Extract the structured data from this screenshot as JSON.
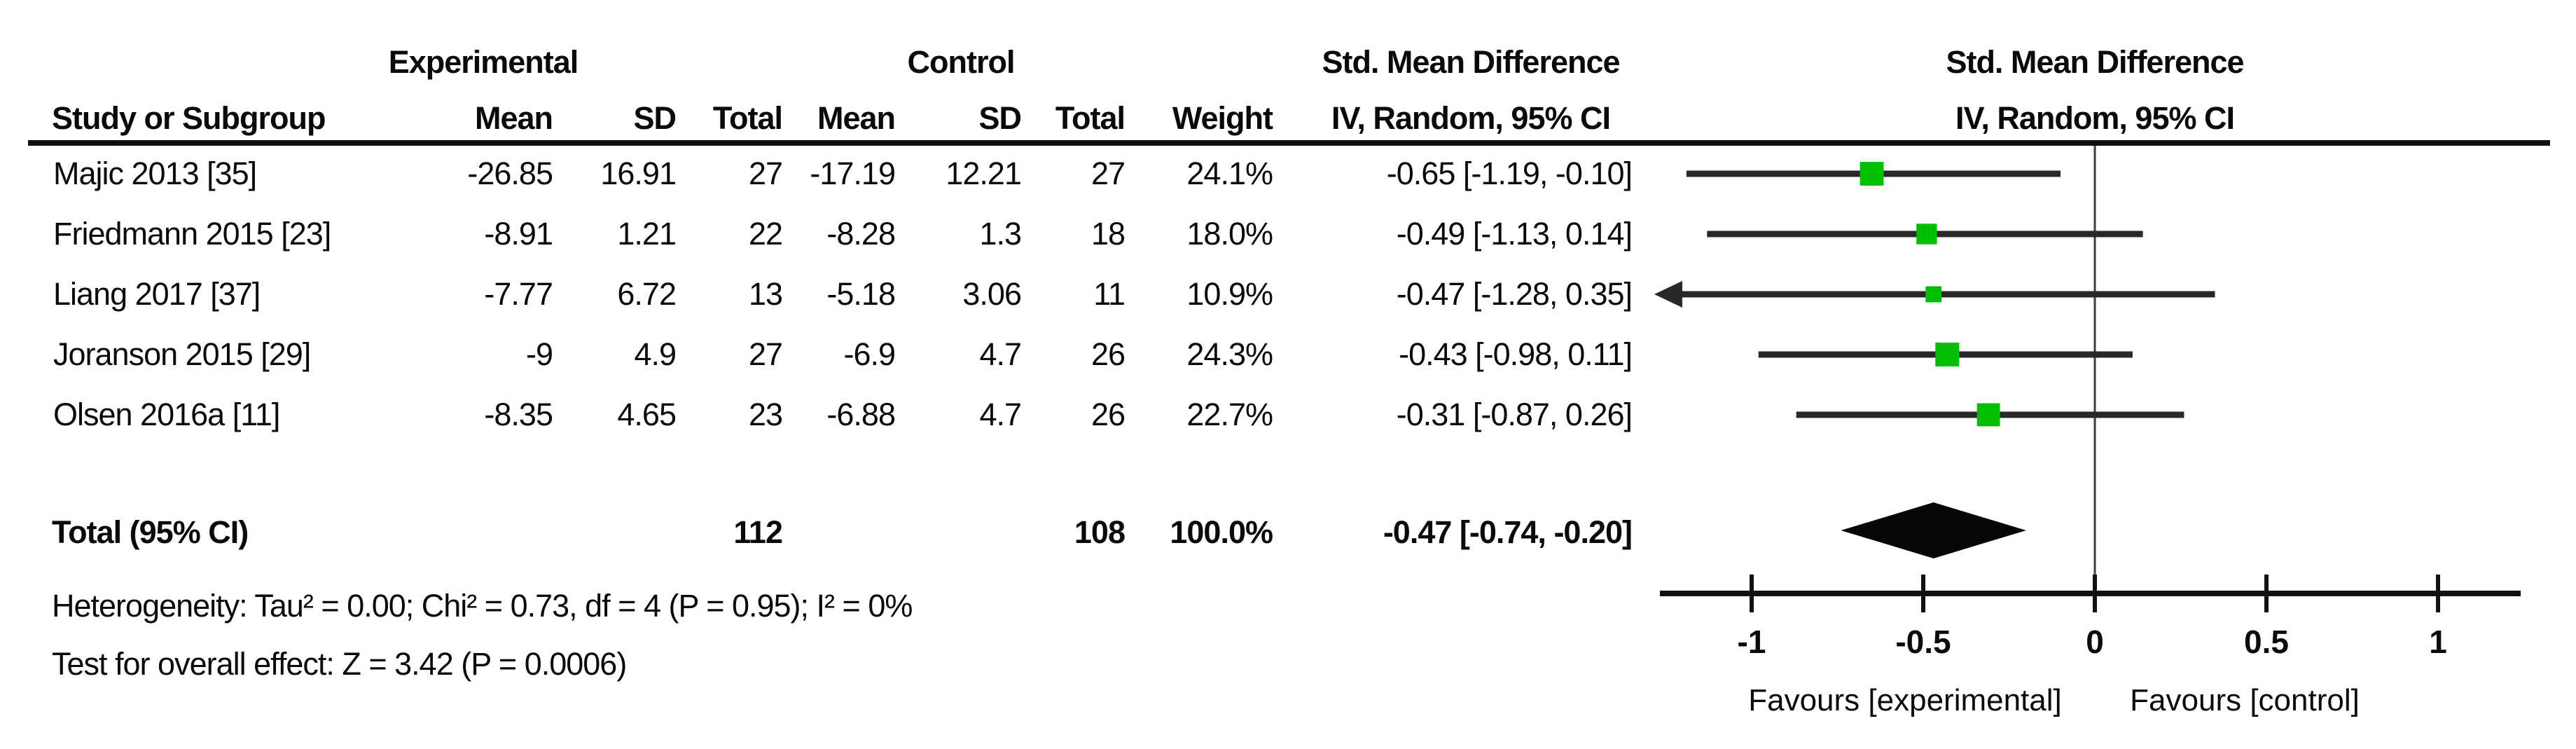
{
  "table": {
    "group_headers": {
      "experimental": "Experimental",
      "control": "Control",
      "smd_table": "Std. Mean Difference",
      "smd_plot": "Std. Mean Difference"
    },
    "col_headers": {
      "study": "Study or Subgroup",
      "mean1": "Mean",
      "sd1": "SD",
      "total1": "Total",
      "mean2": "Mean",
      "sd2": "SD",
      "total2": "Total",
      "weight": "Weight",
      "ci_table": "IV, Random, 95% CI",
      "ci_plot": "IV, Random, 95% CI"
    },
    "rows": [
      {
        "study": "Majic 2013 [35]",
        "mean1": "-26.85",
        "sd1": "16.91",
        "total1": "27",
        "mean2": "-17.19",
        "sd2": "12.21",
        "total2": "27",
        "weight": "24.1%",
        "ci": "-0.65 [-1.19, -0.10]"
      },
      {
        "study": "Friedmann 2015 [23]",
        "mean1": "-8.91",
        "sd1": "1.21",
        "total1": "22",
        "mean2": "-8.28",
        "sd2": "1.3",
        "total2": "18",
        "weight": "18.0%",
        "ci": "-0.49 [-1.13, 0.14]"
      },
      {
        "study": "Liang 2017 [37]",
        "mean1": "-7.77",
        "sd1": "6.72",
        "total1": "13",
        "mean2": "-5.18",
        "sd2": "3.06",
        "total2": "11",
        "weight": "10.9%",
        "ci": "-0.47 [-1.28, 0.35]"
      },
      {
        "study": "Joranson 2015 [29]",
        "mean1": "-9",
        "sd1": "4.9",
        "total1": "27",
        "mean2": "-6.9",
        "sd2": "4.7",
        "total2": "26",
        "weight": "24.3%",
        "ci": "-0.43 [-0.98, 0.11]"
      },
      {
        "study": "Olsen 2016a [11]",
        "mean1": "-8.35",
        "sd1": "4.65",
        "total1": "23",
        "mean2": "-6.88",
        "sd2": "4.7",
        "total2": "26",
        "weight": "22.7%",
        "ci": "-0.31 [-0.87, 0.26]"
      }
    ],
    "total": {
      "label": "Total (95% CI)",
      "total1": "112",
      "total2": "108",
      "weight": "100.0%",
      "ci": "-0.47 [-0.74, -0.20]"
    },
    "footer": {
      "heterogeneity": "Heterogeneity: Tau² = 0.00; Chi² = 0.73, df = 4 (P = 0.95); I² = 0%",
      "overall_effect": "Test for overall effect: Z = 3.42 (P = 0.0006)"
    }
  },
  "chart_data": {
    "type": "forest",
    "title": "Std. Mean Difference",
    "subtitle": "IV, Random, 95% CI",
    "effect_measure": "Std. Mean Difference, IV, Random, 95% CI",
    "xlim": [
      -1.27,
      1.24
    ],
    "axis_ticks": [
      -1,
      -0.5,
      0,
      0.5,
      1
    ],
    "tick_labels": [
      "-1",
      "-0.5",
      "0",
      "0.5",
      "1"
    ],
    "favours_left": "Favours [experimental]",
    "favours_right": "Favours [control]",
    "studies": [
      {
        "label": "Majic 2013 [35]",
        "est": -0.65,
        "lo": -1.19,
        "hi": -0.1,
        "weight": 24.1
      },
      {
        "label": "Friedmann 2015 [23]",
        "est": -0.49,
        "lo": -1.13,
        "hi": 0.14,
        "weight": 18.0
      },
      {
        "label": "Liang 2017 [37]",
        "est": -0.47,
        "lo": -1.28,
        "hi": 0.35,
        "weight": 10.9
      },
      {
        "label": "Joranson 2015 [29]",
        "est": -0.43,
        "lo": -0.98,
        "hi": 0.11,
        "weight": 24.3
      },
      {
        "label": "Olsen 2016a [11]",
        "est": -0.31,
        "lo": -0.87,
        "hi": 0.26,
        "weight": 22.7
      }
    ],
    "summary": {
      "label": "Total (95% CI)",
      "est": -0.47,
      "lo": -0.74,
      "hi": -0.2
    },
    "colors": {
      "square": "#00BE00",
      "ci_line": "#282828",
      "axis": "#111111",
      "diamond": "#060606",
      "zero_line": "#3c3c3c"
    }
  }
}
